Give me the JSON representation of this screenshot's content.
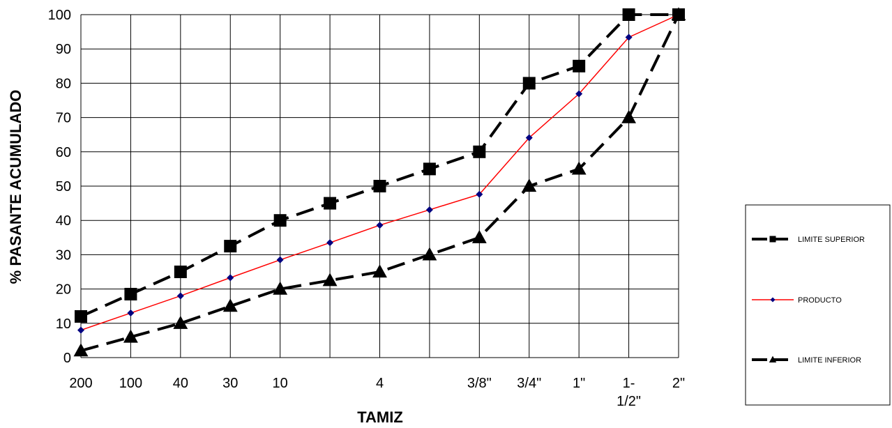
{
  "chart_data": {
    "type": "line",
    "title": "",
    "xlabel": "TAMIZ",
    "ylabel": "% PASANTE ACUMULADO",
    "categories": [
      "200",
      "100",
      "40",
      "30",
      "10",
      "",
      "4",
      "",
      "3/8\"",
      "3/4\"",
      "1\"",
      "1-\n1/2\"",
      "2\""
    ],
    "ylim": [
      0,
      100
    ],
    "yticks": [
      0,
      10,
      20,
      30,
      40,
      50,
      60,
      70,
      80,
      90,
      100
    ],
    "grid": true,
    "legend_position": "right",
    "series": [
      {
        "name": "LIMITE SUPERIOR",
        "color": "#000000",
        "marker": "square",
        "line_style": "dashed",
        "values": [
          12,
          18.5,
          25,
          32.5,
          40,
          45,
          50,
          55,
          60,
          80,
          85,
          100,
          100
        ]
      },
      {
        "name": "PRODUCTO",
        "color": "#ff0000",
        "marker_color": "#000080",
        "marker": "diamond",
        "line_style": "solid",
        "values": [
          8,
          13,
          18,
          23.3,
          28.5,
          33.5,
          38.6,
          43.1,
          47.6,
          64.1,
          76.9,
          93.4,
          100
        ]
      },
      {
        "name": "LIMITE INFERIOR",
        "color": "#000000",
        "marker": "triangle",
        "line_style": "dashed",
        "values": [
          2,
          6,
          10,
          15,
          20,
          22.5,
          25,
          30,
          35,
          50,
          55,
          70,
          100
        ]
      }
    ]
  }
}
